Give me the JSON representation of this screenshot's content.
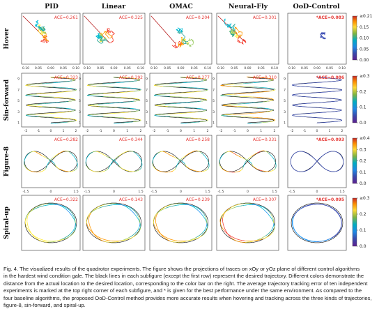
{
  "figure": {
    "columns": [
      "PID",
      "Linear",
      "OMAC",
      "Neural-Fly",
      "OoD-Control"
    ],
    "rows": [
      {
        "label": "Hover",
        "ace": [
          "ACE=0.261",
          "ACE=0.325",
          "ACE=0.204",
          "ACE=0.301",
          "*ACE=0.083"
        ],
        "xticks": [
          "0.10",
          "0.05",
          "0.00",
          "0.05",
          "0.10"
        ],
        "yticks": [],
        "colorbar": {
          "top": "≥0.21",
          "bottom": "0.00",
          "ticks": [
            "≥0.21",
            "0.15",
            "0.10",
            "0.05",
            "0.00"
          ]
        }
      },
      {
        "label": "Sin-forward",
        "ace": [
          "ACE=0.323",
          "ACE=0.292",
          "ACE=0.277",
          "ACE=0.310",
          "*ACE=0.086"
        ],
        "xticks": [
          "-2",
          "-1",
          "0",
          "1",
          "2"
        ],
        "yticks": [
          "9",
          "7",
          "5",
          "3",
          "1"
        ],
        "colorbar": {
          "ticks": [
            "≥0.3",
            "0.2",
            "0.1",
            "0.0"
          ]
        }
      },
      {
        "label": "Figure-8",
        "ace": [
          "ACE=0.282",
          "ACE=0.344",
          "ACE=0.258",
          "ACE=0.331",
          "*ACE=0.093"
        ],
        "xticks": [
          "-1.5",
          "0",
          "1.5"
        ],
        "yticks": [],
        "colorbar": {
          "ticks": [
            "≥0.4",
            "0.3",
            "0.2",
            "0.1",
            "0.0"
          ]
        }
      },
      {
        "label": "Spiral-up",
        "ace": [
          "ACE=0.322",
          "ACE=0.143",
          "ACE=0.239",
          "ACE=0.307",
          "*ACE=0.095"
        ],
        "xticks": [],
        "yticks": [],
        "colorbar": {
          "ticks": [
            "≥0.3",
            "0.2",
            "0.1",
            "0.0"
          ]
        }
      }
    ]
  },
  "caption": {
    "lines": [
      "Fig. 4. The visualized results of the quadrotor experiments. The figure shows the projections of traces on xOy or yOz plane of different control algorithms",
      "in the hardest wind condition gale. The black lines in each subfigure (except the first row) represent the desired trajectory. Different colors demonstrate the",
      "distance from the actual location to the desired location, corresponding to the color bar on the right. The average trajectory tracking error of ten independent",
      "experiments is marked at the top right corner of each subfigure, and * is given for the best performance under the same environment. As compared to the",
      "four baseline algorithms, the proposed OoD-Control method provides more accurate results when hovering and tracking across the three kinds of trajectories,",
      "figure-8, sin-forward, and spiral-up."
    ]
  },
  "colors": {
    "colormap": [
      "#6a1b9a",
      "#3f51b5",
      "#2196f3",
      "#00bcd4",
      "#26a69a",
      "#9ccc65",
      "#ffeb3b",
      "#ff9800",
      "#f44336",
      "#b71c1c"
    ],
    "reference": "#000000",
    "ace_label": "#e53935"
  }
}
